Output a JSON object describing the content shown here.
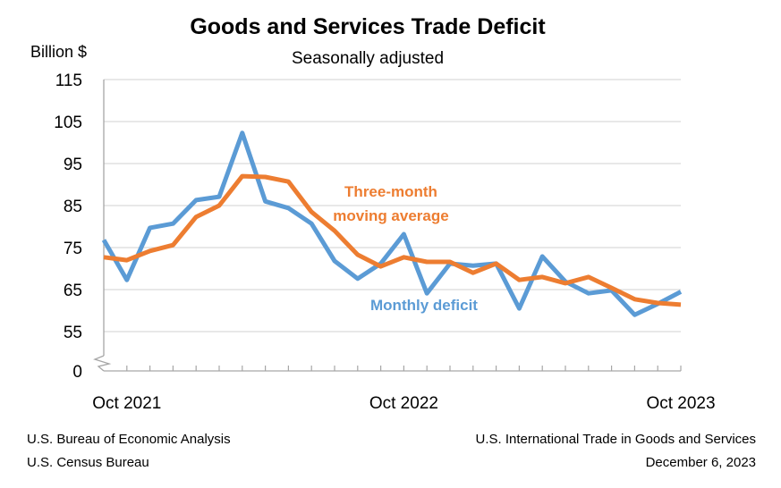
{
  "chart_data": {
    "type": "line",
    "title": "Goods and Services Trade Deficit",
    "subtitle": "Seasonally adjusted",
    "ylabel": "Billion $",
    "xlabel": "",
    "ylim": [
      0,
      115
    ],
    "y_axis_break": "between 0 and 55",
    "yticks": [
      0,
      55,
      65,
      75,
      85,
      95,
      105,
      115
    ],
    "xtick_labels": [
      {
        "label": "Oct 2021",
        "index": 1
      },
      {
        "label": "Oct 2022",
        "index": 13
      },
      {
        "label": "Oct 2023",
        "index": 25
      }
    ],
    "grid": true,
    "x": [
      "Sep 2021",
      "Oct 2021",
      "Nov 2021",
      "Dec 2021",
      "Jan 2022",
      "Feb 2022",
      "Mar 2022",
      "Apr 2022",
      "May 2022",
      "Jun 2022",
      "Jul 2022",
      "Aug 2022",
      "Sep 2022",
      "Oct 2022",
      "Nov 2022",
      "Dec 2022",
      "Jan 2023",
      "Feb 2023",
      "Mar 2023",
      "Apr 2023",
      "May 2023",
      "Jun 2023",
      "Jul 2023",
      "Aug 2023",
      "Sep 2023",
      "Oct 2023"
    ],
    "series": [
      {
        "name": "Monthly deficit",
        "color": "#5B9BD5",
        "values": [
          76.8,
          67.3,
          79.7,
          80.7,
          86.3,
          87.1,
          102.3,
          86.0,
          84.4,
          80.7,
          71.8,
          67.6,
          71.2,
          78.2,
          64.1,
          71.2,
          70.7,
          71.2,
          60.5,
          72.9,
          66.9,
          64.1,
          64.8,
          59.0,
          61.6,
          64.5
        ]
      },
      {
        "name": "Three-month moving average",
        "color": "#ED7D31",
        "values": [
          72.7,
          72.0,
          74.2,
          75.6,
          82.3,
          85.0,
          92.0,
          91.8,
          90.7,
          83.5,
          79.0,
          73.3,
          70.5,
          72.7,
          71.6,
          71.6,
          69.0,
          71.2,
          67.3,
          68.0,
          66.5,
          68.0,
          65.4,
          62.7,
          61.8,
          61.4
        ]
      }
    ],
    "annotations": [
      {
        "text_lines": [
          "Three-month",
          "moving average"
        ],
        "series": "Three-month moving average"
      },
      {
        "text_lines": [
          "Monthly deficit"
        ],
        "series": "Monthly deficit"
      }
    ]
  },
  "footer": {
    "left_line1": "U.S. Bureau of Economic Analysis",
    "left_line2": "U.S. Census Bureau",
    "right_line1": "U.S. International Trade in Goods and Services",
    "right_line2": "December 6, 2023"
  }
}
